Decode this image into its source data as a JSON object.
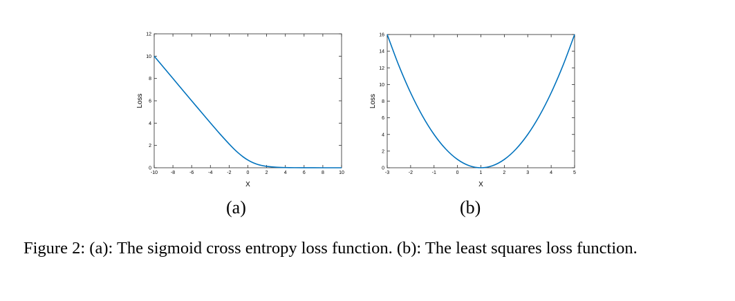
{
  "chart_data": [
    {
      "type": "line",
      "function": "sigmoid cross entropy loss",
      "xlabel": "X",
      "ylabel": "Loss",
      "xlim": [
        -10,
        10
      ],
      "ylim": [
        0,
        12
      ],
      "xticks": [
        -10,
        -8,
        -6,
        -4,
        -2,
        0,
        2,
        4,
        6,
        8,
        10
      ],
      "yticks": [
        0,
        2,
        4,
        6,
        8,
        10,
        12
      ],
      "series": [
        {
          "name": "loss",
          "color": "#0072BD",
          "x": [
            -10,
            -9,
            -8,
            -7,
            -6,
            -5,
            -4,
            -3,
            -2,
            -1.5,
            -1,
            -0.5,
            0,
            0.5,
            1,
            1.5,
            2,
            3,
            4,
            5,
            6,
            7,
            8,
            9,
            10
          ],
          "y": [
            10.0,
            9.0,
            8.0,
            7.0,
            6.0,
            5.01,
            4.02,
            3.05,
            2.13,
            1.7,
            1.31,
            0.97,
            0.69,
            0.47,
            0.31,
            0.2,
            0.13,
            0.05,
            0.02,
            0.007,
            0.002,
            0.001,
            0.0003,
            0.0001,
            5e-05
          ]
        }
      ]
    },
    {
      "type": "line",
      "function": "least squares loss",
      "xlabel": "X",
      "ylabel": "Loss",
      "xlim": [
        -3,
        5
      ],
      "ylim": [
        0,
        16
      ],
      "xticks": [
        -3,
        -2,
        -1,
        0,
        1,
        2,
        3,
        4,
        5
      ],
      "yticks": [
        0,
        2,
        4,
        6,
        8,
        10,
        12,
        14,
        16
      ],
      "series": [
        {
          "name": "loss",
          "color": "#0072BD",
          "x": [
            -3,
            -2.5,
            -2,
            -1.5,
            -1,
            -0.5,
            0,
            0.5,
            1,
            1.5,
            2,
            2.5,
            3,
            3.5,
            4,
            4.5,
            5
          ],
          "y": [
            16,
            12.25,
            9,
            6.25,
            4,
            2.25,
            1,
            0.25,
            0,
            0.25,
            1,
            2.25,
            4,
            6.25,
            9,
            12.25,
            16
          ]
        }
      ]
    }
  ],
  "subfigures": [
    "(a)",
    "(b)"
  ],
  "caption": {
    "label": "Figure 2:",
    "text": "(a): The sigmoid cross entropy loss function. (b): The least squares loss function."
  }
}
